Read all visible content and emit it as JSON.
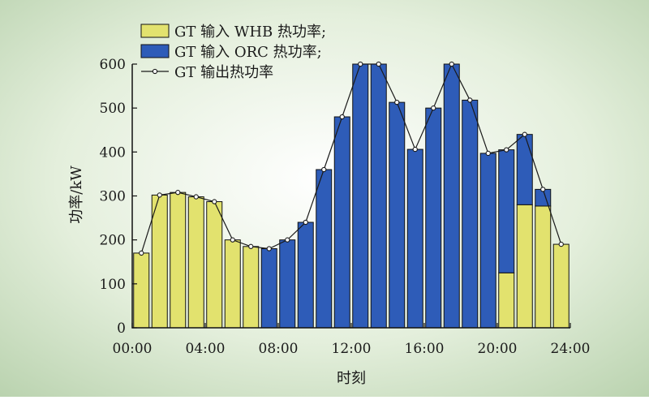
{
  "chart_data": {
    "type": "bar",
    "title": "",
    "xlabel": "时刻",
    "ylabel": "功率/kW",
    "ylim": [
      0,
      600
    ],
    "yticks": [
      0,
      100,
      200,
      300,
      400,
      500,
      600
    ],
    "xlim": [
      0,
      24
    ],
    "xticks": [
      {
        "x": 0,
        "label": "00:00"
      },
      {
        "x": 4,
        "label": "04:00"
      },
      {
        "x": 8,
        "label": "08:00"
      },
      {
        "x": 12,
        "label": "12:00"
      },
      {
        "x": 16,
        "label": "16:00"
      },
      {
        "x": 20,
        "label": "20:00"
      },
      {
        "x": 24,
        "label": "24:00"
      }
    ],
    "hours": [
      1,
      2,
      3,
      4,
      5,
      6,
      7,
      8,
      9,
      10,
      11,
      12,
      13,
      14,
      15,
      16,
      17,
      18,
      19,
      20,
      21,
      22,
      23,
      24
    ],
    "series": [
      {
        "name": "GT 输入 WHB 热功率;",
        "type": "bar",
        "color": "#e2e26e",
        "values": [
          170,
          302,
          308,
          298,
          287,
          200,
          185,
          0,
          0,
          0,
          0,
          0,
          0,
          0,
          0,
          0,
          0,
          0,
          0,
          0,
          125,
          280,
          277,
          190
        ]
      },
      {
        "name": "GT 输入 ORC 热功率;",
        "type": "bar",
        "color": "#2e5cb8",
        "values": [
          0,
          0,
          0,
          0,
          0,
          0,
          0,
          180,
          200,
          240,
          360,
          480,
          600,
          600,
          513,
          406,
          500,
          600,
          518,
          397,
          280,
          160,
          38,
          0
        ]
      },
      {
        "name": "GT 输出热功率",
        "type": "line",
        "color": "#1a1a1a",
        "values": [
          170,
          302,
          308,
          298,
          287,
          200,
          185,
          180,
          200,
          240,
          360,
          480,
          600,
          600,
          513,
          406,
          500,
          600,
          518,
          397,
          405,
          440,
          315,
          190
        ]
      }
    ],
    "legend_position": "top-left",
    "grid": false,
    "background": "#dbe8d0"
  }
}
